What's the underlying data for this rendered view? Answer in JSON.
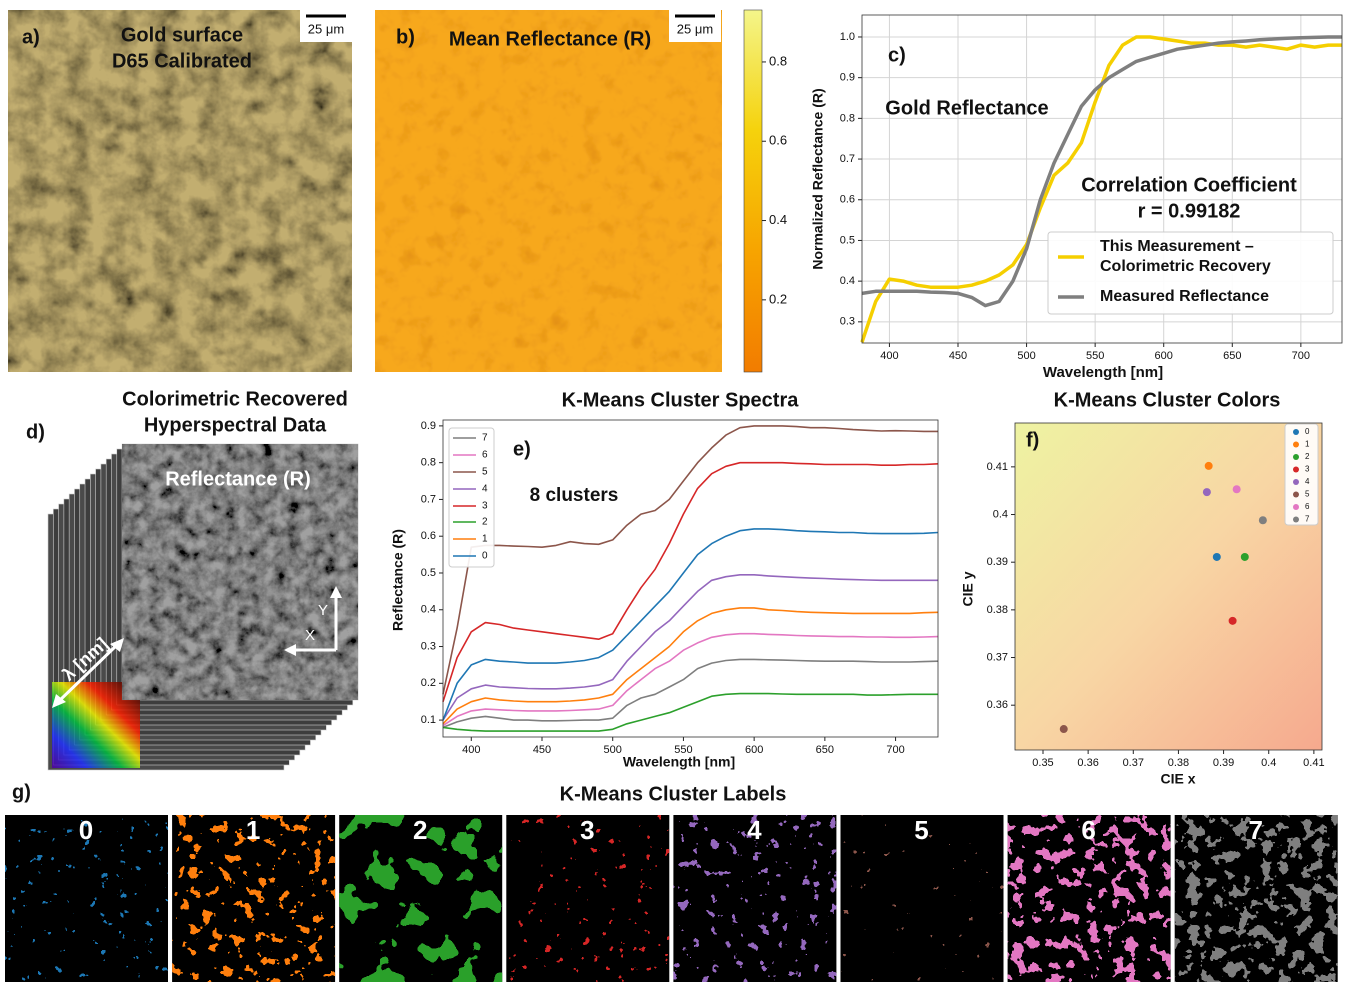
{
  "figure": {
    "a": {
      "label": "a)",
      "title": "Gold surface",
      "subtitle": "D65 Calibrated",
      "scale_bar": "25 μm"
    },
    "b": {
      "label": "b)",
      "title": "Mean Reflectance (R)",
      "scale_bar": "25 μm"
    },
    "d": {
      "label": "d)",
      "title": "Colorimetric Recovered",
      "subtitle": "Hyperspectral Data",
      "image_label": "Reflectance (R)",
      "axis_lambda": "λ [nm]",
      "axis_x": "X",
      "axis_y": "Y"
    },
    "g": {
      "label": "g)",
      "title": "K-Means Cluster Labels",
      "tiles": [
        "0",
        "1",
        "2",
        "3",
        "4",
        "5",
        "6",
        "7"
      ]
    }
  },
  "chart_data": [
    {
      "type": "colorbar",
      "colors": [
        "#f27c00",
        "#f7a400",
        "#f5d20c",
        "#f4f58a"
      ],
      "ylim": [
        0.018,
        0.931
      ],
      "yticks": [
        0.2,
        0.4,
        0.6,
        0.8
      ]
    },
    {
      "type": "line",
      "annotations": {
        "label": "c)",
        "title": "Gold Reflectance",
        "corr": "Correlation Coefficient",
        "r": "r = 0.99182"
      },
      "xlabel": "Wavelength [nm]",
      "ylabel": "Normalized Reflectance (R)",
      "x": [
        380,
        390,
        400,
        410,
        420,
        430,
        440,
        450,
        460,
        470,
        480,
        490,
        500,
        510,
        520,
        530,
        540,
        550,
        560,
        570,
        580,
        590,
        600,
        610,
        620,
        630,
        640,
        650,
        660,
        670,
        680,
        690,
        700,
        710,
        720,
        730
      ],
      "series": [
        {
          "name": "This Measurement – Colorimetric Recovery",
          "color": "#f5cf00",
          "values": [
            0.25,
            0.35,
            0.405,
            0.4,
            0.39,
            0.385,
            0.385,
            0.385,
            0.39,
            0.4,
            0.415,
            0.44,
            0.49,
            0.58,
            0.66,
            0.69,
            0.74,
            0.84,
            0.93,
            0.98,
            1.0,
            1.0,
            0.995,
            0.99,
            0.985,
            0.985,
            0.98,
            0.98,
            0.975,
            0.98,
            0.975,
            0.97,
            0.98,
            0.975,
            0.98,
            0.98
          ]
        },
        {
          "name": "Measured Reflectance",
          "color": "#7f7f7f",
          "values": [
            0.37,
            0.375,
            0.375,
            0.375,
            0.375,
            0.373,
            0.372,
            0.37,
            0.36,
            0.34,
            0.35,
            0.4,
            0.48,
            0.6,
            0.69,
            0.76,
            0.83,
            0.87,
            0.9,
            0.92,
            0.94,
            0.95,
            0.96,
            0.97,
            0.975,
            0.98,
            0.985,
            0.988,
            0.99,
            0.993,
            0.995,
            0.997,
            0.998,
            0.999,
            1.0,
            1.0
          ]
        }
      ],
      "xlim": [
        380,
        730
      ],
      "ylim": [
        0.248,
        1.054
      ],
      "xticks": [
        400,
        450,
        500,
        550,
        600,
        650,
        700
      ],
      "yticks": [
        0.3,
        0.4,
        0.5,
        0.6,
        0.7,
        0.8,
        0.9,
        {
          "value": 1,
          "label": "1.0"
        }
      ],
      "grid": true,
      "legend": "lower right"
    },
    {
      "type": "line",
      "title": "K-Means Cluster Spectra",
      "annotations": {
        "label": "e)",
        "clusters": "8 clusters"
      },
      "xlabel": "Wavelength [nm]",
      "ylabel": "Reflectance (R)",
      "x": [
        380,
        390,
        400,
        410,
        420,
        430,
        440,
        450,
        460,
        470,
        480,
        490,
        500,
        510,
        520,
        530,
        540,
        550,
        560,
        570,
        580,
        590,
        600,
        610,
        620,
        630,
        640,
        650,
        660,
        670,
        680,
        690,
        700,
        710,
        720,
        730
      ],
      "series": [
        {
          "name": "7",
          "color": "#7f7f7f",
          "values": [
            0.08,
            0.095,
            0.105,
            0.11,
            0.105,
            0.1,
            0.1,
            0.098,
            0.098,
            0.099,
            0.1,
            0.1,
            0.105,
            0.14,
            0.16,
            0.17,
            0.19,
            0.21,
            0.24,
            0.255,
            0.262,
            0.265,
            0.265,
            0.264,
            0.263,
            0.262,
            0.261,
            0.26,
            0.26,
            0.26,
            0.259,
            0.258,
            0.258,
            0.258,
            0.259,
            0.26
          ]
        },
        {
          "name": "6",
          "color": "#e377c2",
          "values": [
            0.085,
            0.11,
            0.125,
            0.13,
            0.128,
            0.126,
            0.125,
            0.125,
            0.125,
            0.126,
            0.128,
            0.13,
            0.14,
            0.18,
            0.21,
            0.24,
            0.26,
            0.29,
            0.31,
            0.325,
            0.332,
            0.335,
            0.335,
            0.333,
            0.332,
            0.33,
            0.329,
            0.328,
            0.327,
            0.327,
            0.326,
            0.326,
            0.325,
            0.325,
            0.326,
            0.327
          ]
        },
        {
          "name": "5",
          "color": "#8c564b",
          "values": [
            0.17,
            0.35,
            0.57,
            0.575,
            0.575,
            0.573,
            0.572,
            0.57,
            0.575,
            0.585,
            0.58,
            0.578,
            0.59,
            0.63,
            0.66,
            0.67,
            0.7,
            0.75,
            0.8,
            0.84,
            0.875,
            0.895,
            0.9,
            0.9,
            0.9,
            0.898,
            0.895,
            0.895,
            0.893,
            0.89,
            0.888,
            0.886,
            0.887,
            0.886,
            0.885,
            0.885
          ]
        },
        {
          "name": "4",
          "color": "#9467bd",
          "values": [
            0.1,
            0.16,
            0.185,
            0.195,
            0.19,
            0.188,
            0.186,
            0.185,
            0.185,
            0.187,
            0.19,
            0.195,
            0.21,
            0.26,
            0.3,
            0.34,
            0.37,
            0.41,
            0.45,
            0.48,
            0.49,
            0.495,
            0.495,
            0.492,
            0.49,
            0.488,
            0.486,
            0.485,
            0.483,
            0.482,
            0.481,
            0.48,
            0.48,
            0.48,
            0.48,
            0.48
          ]
        },
        {
          "name": "3",
          "color": "#d62728",
          "values": [
            0.15,
            0.27,
            0.34,
            0.365,
            0.36,
            0.35,
            0.345,
            0.34,
            0.335,
            0.33,
            0.325,
            0.32,
            0.335,
            0.4,
            0.46,
            0.51,
            0.58,
            0.66,
            0.73,
            0.77,
            0.79,
            0.8,
            0.8,
            0.8,
            0.8,
            0.798,
            0.797,
            0.795,
            0.795,
            0.795,
            0.795,
            0.793,
            0.793,
            0.795,
            0.795,
            0.797
          ]
        },
        {
          "name": "2",
          "color": "#2ca02c",
          "values": [
            0.08,
            0.075,
            0.072,
            0.07,
            0.07,
            0.07,
            0.07,
            0.07,
            0.07,
            0.07,
            0.07,
            0.07,
            0.075,
            0.09,
            0.1,
            0.11,
            0.12,
            0.135,
            0.15,
            0.165,
            0.17,
            0.172,
            0.172,
            0.172,
            0.171,
            0.17,
            0.17,
            0.17,
            0.17,
            0.17,
            0.168,
            0.168,
            0.169,
            0.17,
            0.17,
            0.17
          ]
        },
        {
          "name": "1",
          "color": "#ff7f0e",
          "values": [
            0.09,
            0.13,
            0.15,
            0.16,
            0.155,
            0.152,
            0.15,
            0.15,
            0.15,
            0.152,
            0.155,
            0.16,
            0.17,
            0.21,
            0.24,
            0.27,
            0.3,
            0.34,
            0.37,
            0.39,
            0.4,
            0.405,
            0.405,
            0.4,
            0.398,
            0.395,
            0.393,
            0.392,
            0.391,
            0.39,
            0.39,
            0.39,
            0.39,
            0.39,
            0.392,
            0.393
          ]
        },
        {
          "name": "0",
          "color": "#1f77b4",
          "values": [
            0.1,
            0.2,
            0.25,
            0.265,
            0.26,
            0.258,
            0.255,
            0.255,
            0.255,
            0.258,
            0.262,
            0.27,
            0.29,
            0.33,
            0.37,
            0.41,
            0.45,
            0.5,
            0.55,
            0.58,
            0.6,
            0.615,
            0.62,
            0.62,
            0.618,
            0.615,
            0.613,
            0.612,
            0.61,
            0.61,
            0.608,
            0.607,
            0.607,
            0.607,
            0.608,
            0.61
          ]
        }
      ],
      "xlim": [
        380,
        730
      ],
      "ylim": [
        0.054,
        0.916
      ],
      "xticks": [
        400,
        450,
        500,
        550,
        600,
        650,
        700
      ],
      "yticks": [
        0.1,
        0.2,
        0.3,
        0.4,
        0.5,
        0.6,
        0.7,
        0.8,
        0.9
      ],
      "grid": false,
      "legend": "upper left"
    },
    {
      "type": "scatter",
      "title": "K-Means Cluster Colors",
      "annotations": {
        "label": "f)"
      },
      "xlabel": "CIE x",
      "ylabel": "CIE y",
      "series": [
        {
          "name": "0",
          "color": "#1f77b4",
          "x": [
            0.3885
          ],
          "values": [
            0.3911
          ]
        },
        {
          "name": "1",
          "color": "#ff7f0e",
          "x": [
            0.3867
          ],
          "values": [
            0.4102
          ]
        },
        {
          "name": "2",
          "color": "#2ca02c",
          "x": [
            0.3947
          ],
          "values": [
            0.3911
          ]
        },
        {
          "name": "3",
          "color": "#d62728",
          "x": [
            0.392
          ],
          "values": [
            0.3777
          ]
        },
        {
          "name": "4",
          "color": "#9467bd",
          "x": [
            0.3863
          ],
          "values": [
            0.4047
          ]
        },
        {
          "name": "5",
          "color": "#8c564b",
          "x": [
            0.3546
          ],
          "values": [
            0.355
          ]
        },
        {
          "name": "6",
          "color": "#e377c2",
          "x": [
            0.3929
          ],
          "values": [
            0.4053
          ]
        },
        {
          "name": "7",
          "color": "#7f7f7f",
          "x": [
            0.3987
          ],
          "values": [
            0.3988
          ]
        }
      ],
      "xlim": [
        0.3438,
        0.4118
      ],
      "ylim": [
        0.3506,
        0.4192
      ],
      "xticks": [
        0.35,
        0.36,
        0.37,
        0.38,
        0.39,
        0.4,
        0.41
      ],
      "yticks": [
        0.36,
        0.37,
        0.38,
        0.39,
        0.4,
        0.41
      ],
      "grid": false,
      "legend": "upper right"
    }
  ]
}
